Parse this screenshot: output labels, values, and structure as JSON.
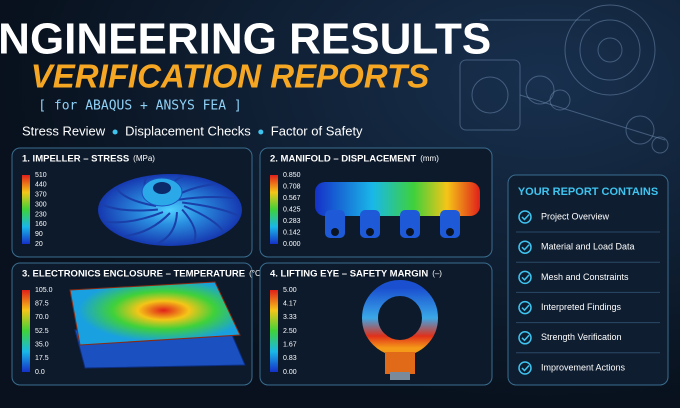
{
  "header": {
    "title": "ENGINEERING RESULTS",
    "subtitle": "VERIFICATION REPORTS",
    "tag": "[ for ABAQUS + ANSYS FEA ]"
  },
  "features": [
    "Stress Review",
    "Displacement Checks",
    "Factor of Safety"
  ],
  "panels": [
    {
      "title": "1. IMPELLER – STRESS",
      "unit": "(MPa)",
      "legend": [
        "510",
        "440",
        "370",
        "300",
        "230",
        "160",
        "90",
        "20"
      ]
    },
    {
      "title": "2. MANIFOLD – DISPLACEMENT",
      "unit": "(mm)",
      "legend": [
        "0.850",
        "0.708",
        "0.567",
        "0.425",
        "0.283",
        "0.142",
        "0.000"
      ]
    },
    {
      "title": "3. ELECTRONICS ENCLOSURE – TEMPERATURE",
      "unit": "(°C)",
      "legend": [
        "105.0",
        "87.5",
        "70.0",
        "52.5",
        "35.0",
        "17.5",
        "0.0"
      ]
    },
    {
      "title": "4. LIFTING EYE – SAFETY MARGIN",
      "unit": "(–)",
      "legend": [
        "5.00",
        "4.17",
        "3.33",
        "2.50",
        "1.67",
        "0.83",
        "0.00"
      ]
    }
  ],
  "report": {
    "title": "YOUR REPORT CONTAINS",
    "items": [
      "Project Overview",
      "Material and Load Data",
      "Mesh and Constraints",
      "Interpreted Findings",
      "Strength Verification",
      "Improvement Actions"
    ]
  }
}
